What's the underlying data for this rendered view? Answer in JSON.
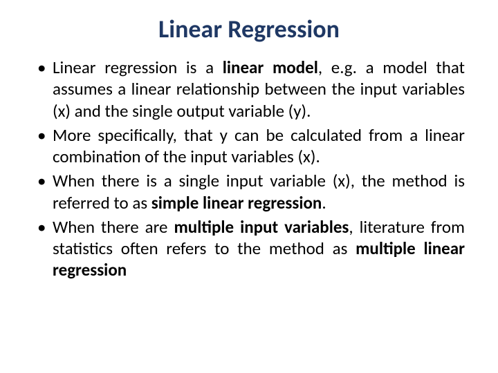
{
  "title": {
    "text": "Linear Regression",
    "color": "#1f3864",
    "fontsize": 36
  },
  "body": {
    "color": "#000000",
    "fontsize": 25,
    "lineheight": 1.25
  },
  "bullets": [
    {
      "seg1": "Linear regression is a ",
      "bold1": "linear model",
      "seg2": ", e.g. a model that assumes a linear relationship between the input variables (x) and the single output variable (y)."
    },
    {
      "seg1": "More specifically, that y can be calculated from a linear combination of the input variables (x)."
    },
    {
      "seg1": "When there is a single input variable (x), the method is referred to as ",
      "bold1": "simple linear regression",
      "seg2": "."
    },
    {
      "seg1": "When there are ",
      "bold1": "multiple input variables",
      "seg2": ", literature from statistics often refers to the method as ",
      "bold2": "multiple linear regression"
    }
  ]
}
